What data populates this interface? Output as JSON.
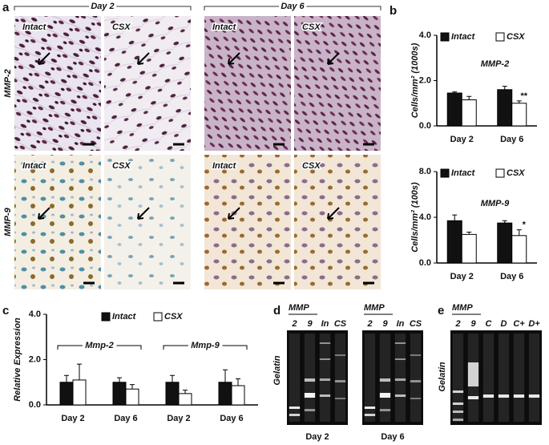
{
  "panels": {
    "a": {
      "label": "a",
      "days": [
        "Day 2",
        "Day 6"
      ],
      "rows": [
        "MMP-2",
        "MMP-9"
      ],
      "images": [
        [
          "Intact",
          "CSX",
          "Intact",
          "CSX"
        ],
        [
          "Intact",
          "CSX",
          "Intact",
          "CSX"
        ]
      ]
    },
    "b": {
      "label": "b"
    },
    "c": {
      "label": "c"
    },
    "d": {
      "label": "d",
      "side_label": "Gelatin",
      "gels": [
        {
          "header": "MMP",
          "lanes": [
            "2",
            "9",
            "In",
            "CS"
          ],
          "caption": "Day 2"
        },
        {
          "header": "MMP",
          "lanes": [
            "2",
            "9",
            "In",
            "CS"
          ],
          "caption": "Day 6"
        }
      ]
    },
    "e": {
      "label": "e",
      "side_label": "Gelatin",
      "header": "MMP",
      "lanes": [
        "2",
        "9",
        "C",
        "D",
        "C+",
        "D+"
      ]
    }
  },
  "chart_data": [
    {
      "type": "bar",
      "title": "MMP-2",
      "ylabel": "Cells/mm² (1000s)",
      "categories": [
        "Day 2",
        "Day 6"
      ],
      "series": [
        {
          "name": "Intact",
          "color": "#111111",
          "values": [
            1.45,
            1.6
          ],
          "errors": [
            0.05,
            0.15
          ]
        },
        {
          "name": "CSX",
          "color": "#ffffff",
          "values": [
            1.15,
            1.0
          ],
          "errors": [
            0.15,
            0.1
          ],
          "significance": [
            null,
            "**"
          ]
        }
      ],
      "ylim": [
        0,
        4
      ],
      "yticks": [
        {
          "value": 0,
          "label": "0.0"
        },
        {
          "value": 2,
          "label": "2.0"
        },
        {
          "value": 4,
          "label": "4.0"
        }
      ]
    },
    {
      "type": "bar",
      "title": "MMP-9",
      "ylabel": "Cells/mm² (100s)",
      "categories": [
        "Day 2",
        "Day 6"
      ],
      "series": [
        {
          "name": "Intact",
          "color": "#111111",
          "values": [
            3.7,
            3.5
          ],
          "errors": [
            0.5,
            0.2
          ]
        },
        {
          "name": "CSX",
          "color": "#ffffff",
          "values": [
            2.5,
            2.4
          ],
          "errors": [
            0.2,
            0.5
          ],
          "significance": [
            null,
            "*"
          ]
        }
      ],
      "ylim": [
        0,
        8
      ],
      "yticks": [
        {
          "value": 0,
          "label": "0.0"
        },
        {
          "value": 4,
          "label": "4.0"
        },
        {
          "value": 8,
          "label": "8.0"
        }
      ]
    },
    {
      "type": "bar",
      "ylabel": "Relative Expression",
      "groups": [
        "Mmp-2",
        "Mmp-9"
      ],
      "categories": [
        "Day 2",
        "Day 6",
        "Day 2",
        "Day 6"
      ],
      "series": [
        {
          "name": "Intact",
          "color": "#111111",
          "values": [
            1.0,
            1.0,
            1.0,
            1.0
          ],
          "errors": [
            0.3,
            0.2,
            0.3,
            0.55
          ]
        },
        {
          "name": "CSX",
          "color": "#ffffff",
          "values": [
            1.1,
            0.7,
            0.5,
            0.85
          ],
          "errors": [
            0.7,
            0.2,
            0.15,
            0.3
          ]
        }
      ],
      "ylim": [
        0,
        4
      ],
      "yticks": [
        {
          "value": 0,
          "label": "0.0"
        },
        {
          "value": 2,
          "label": "2.0"
        },
        {
          "value": 4,
          "label": "4.0"
        }
      ]
    }
  ]
}
